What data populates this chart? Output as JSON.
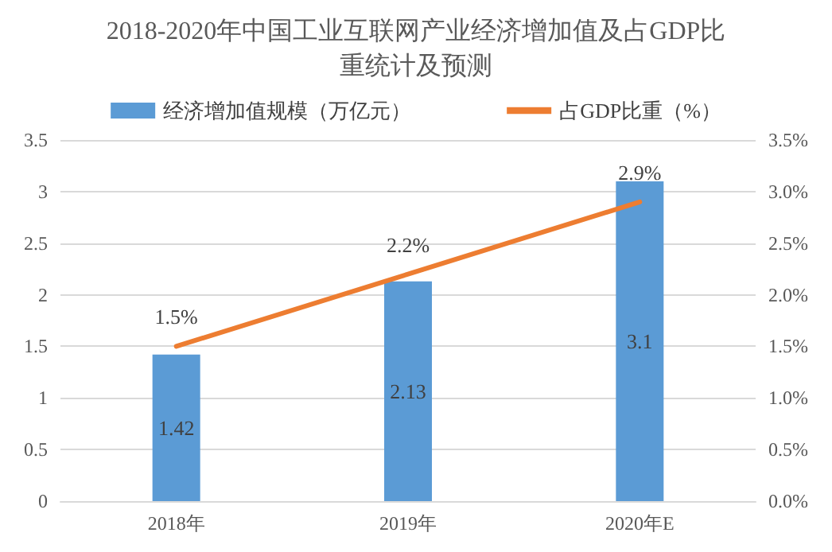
{
  "chart_data": {
    "type": "bar",
    "title": "2018-2020年中国工业互联网产业经济增加值及占GDP比重统计及预测",
    "categories": [
      "2018年",
      "2019年",
      "2020年E"
    ],
    "series": [
      {
        "name": "经济增加值规模（万亿元）",
        "color": "#5b9bd5",
        "values": [
          1.42,
          2.13,
          3.1
        ],
        "value_labels": [
          "1.42",
          "2.13",
          "3.1"
        ]
      },
      {
        "name": "占GDP比重（%）",
        "type": "line",
        "axis": "y2",
        "color": "#ed7d31",
        "values": [
          1.5,
          2.2,
          2.9
        ],
        "value_labels": [
          "1.5%",
          "2.2%",
          "2.9%"
        ],
        "marker": "none",
        "line_style": "solid"
      }
    ],
    "ylim": [
      0,
      3.5
    ],
    "yticks": [
      0,
      0.5,
      1,
      1.5,
      2,
      2.5,
      3,
      3.5
    ],
    "y2lim": [
      0,
      3.5
    ],
    "y2ticks": [
      {
        "value": 0,
        "label": "0.0%"
      },
      {
        "value": 0.5,
        "label": "0.5%"
      },
      {
        "value": 1,
        "label": "1.0%"
      },
      {
        "value": 1.5,
        "label": "1.5%"
      },
      {
        "value": 2,
        "label": "2.0%"
      },
      {
        "value": 2.5,
        "label": "2.5%"
      },
      {
        "value": 3,
        "label": "3.0%"
      },
      {
        "value": 3.5,
        "label": "3.5%"
      }
    ],
    "grid": "y",
    "legend": "top"
  }
}
